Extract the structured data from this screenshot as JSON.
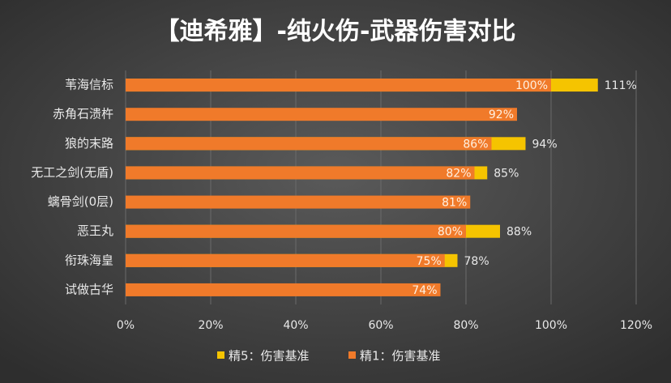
{
  "chart_data": {
    "type": "bar",
    "orientation": "horizontal",
    "title": "【迪希雅】-纯火伤-武器伤害对比",
    "categories": [
      "苇海信标",
      "赤角石溃杵",
      "狼的末路",
      "无工之剑(无盾)",
      "螭骨剑(0层)",
      "恶王丸",
      "衔珠海皇",
      "试做古华"
    ],
    "series": [
      {
        "name": "精5：伤害基准",
        "color": "#f5c400",
        "values": [
          111,
          null,
          94,
          85,
          null,
          88,
          78,
          null
        ],
        "value_labels": [
          "111%",
          null,
          "94%",
          "85%",
          null,
          "88%",
          "78%",
          null
        ]
      },
      {
        "name": "精1：伤害基准",
        "color": "#f07a2a",
        "values": [
          100,
          92,
          86,
          82,
          81,
          80,
          75,
          74
        ],
        "value_labels": [
          "100%",
          "92%",
          "86%",
          "82%",
          "81%",
          "80%",
          "75%",
          "74%"
        ]
      }
    ],
    "xlim": [
      0,
      120
    ],
    "xticks": [
      {
        "value": 0,
        "label": "0%"
      },
      {
        "value": 20,
        "label": "20%"
      },
      {
        "value": 40,
        "label": "40%"
      },
      {
        "value": 60,
        "label": "60%"
      },
      {
        "value": 80,
        "label": "80%"
      },
      {
        "value": 100,
        "label": "100%"
      },
      {
        "value": 120,
        "label": "120%"
      }
    ],
    "grid": true,
    "legend": "bottom"
  }
}
